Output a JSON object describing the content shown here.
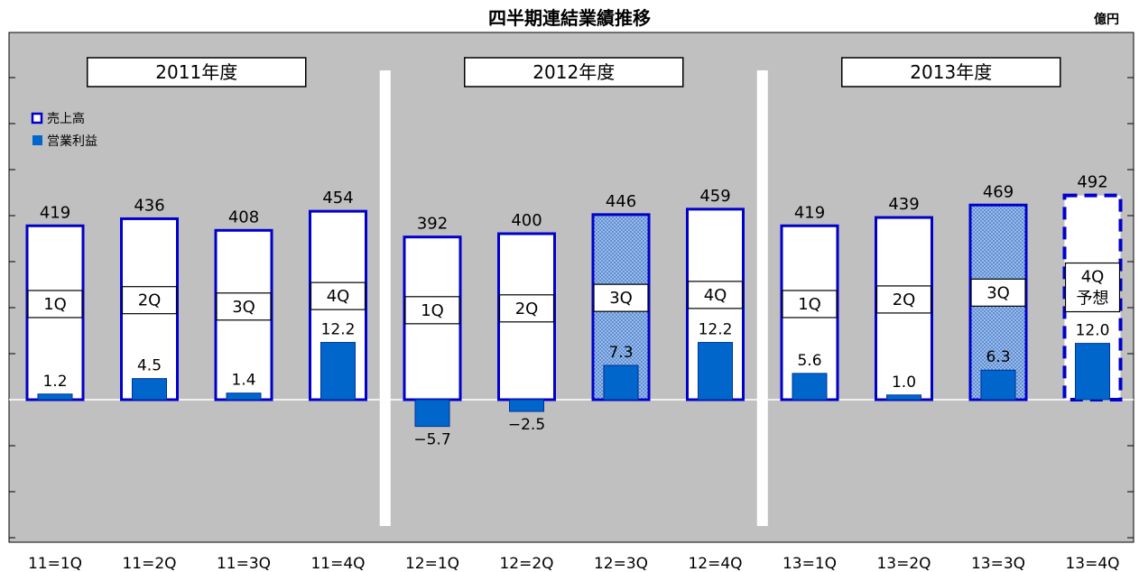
{
  "chart_data": {
    "type": "bar",
    "title": "四半期連結業績推移",
    "unit": "億円",
    "categories": [
      "11=1Q",
      "11=2Q",
      "11=3Q",
      "11=4Q",
      "12=1Q",
      "12=2Q",
      "12=3Q",
      "12=4Q",
      "13=1Q",
      "13=2Q",
      "13=3Q",
      "13=4Q"
    ],
    "quarter_labels": [
      "1Q",
      "2Q",
      "3Q",
      "4Q",
      "1Q",
      "2Q",
      "3Q",
      "4Q",
      "1Q",
      "2Q",
      "3Q",
      "4Q\n予想"
    ],
    "year_groups": [
      {
        "label": "2011年度",
        "count": 4
      },
      {
        "label": "2012年度",
        "count": 4
      },
      {
        "label": "2013年度",
        "count": 4
      }
    ],
    "series": [
      {
        "name": "売上高",
        "values": [
          419,
          436,
          408,
          454,
          392,
          400,
          446,
          459,
          419,
          439,
          469,
          492
        ]
      },
      {
        "name": "営業利益",
        "values": [
          1.2,
          4.5,
          1.4,
          12.2,
          -5.7,
          -2.5,
          7.3,
          12.2,
          5.6,
          1.0,
          6.3,
          12.0
        ]
      }
    ],
    "operating_profit_labels": [
      "1.2",
      "4.5",
      "1.4",
      "12.2",
      "−5.7",
      "−2.5",
      "7.3",
      "12.2",
      "5.6",
      "1.0",
      "6.3",
      "12.0"
    ],
    "highlighted_quarters": [
      6,
      10
    ],
    "forecast_quarters": [
      11
    ],
    "legend_position": "top-left",
    "grid": false,
    "colors": {
      "plot_background": "#c0c0c0",
      "sales_border": "#0000cc",
      "sales_fill": "#ffffff",
      "profit_fill": "#0066cc",
      "negative_label": "#ff0000",
      "year_divider": "#ffffff"
    }
  }
}
